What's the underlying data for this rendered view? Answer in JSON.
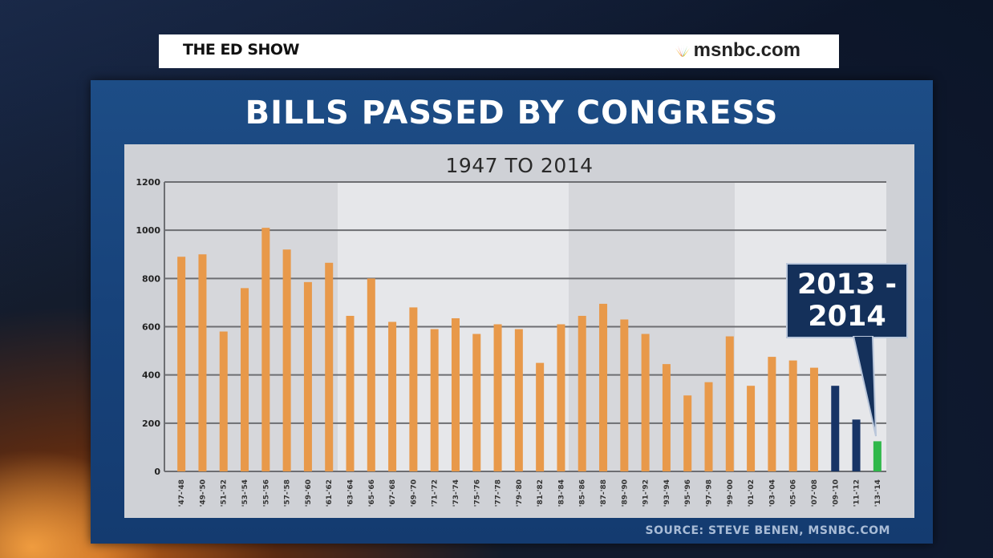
{
  "banner": {
    "show_title": "THE ED SHOW",
    "network": "msnbc.com",
    "network_logo": "peacock-icon"
  },
  "colors": {
    "bar_default": "#e8994a",
    "bar_recent": "#173466",
    "bar_highlight": "#2fb84a"
  },
  "chart_data": {
    "type": "bar",
    "title": "BILLS PASSED BY CONGRESS",
    "subtitle": "1947 TO 2014",
    "xlabel": "",
    "ylabel": "",
    "ylim": [
      0,
      1200
    ],
    "yticks": [
      0,
      200,
      400,
      600,
      800,
      1000,
      1200
    ],
    "grid": true,
    "categories": [
      "'47-'48",
      "'49-'50",
      "'51-'52",
      "'53-'54",
      "'55-'56",
      "'57-'58",
      "'59-'60",
      "'61-'62",
      "'63-'64",
      "'65-'66",
      "'67-'68",
      "'69-'70",
      "'71-'72",
      "'73-'74",
      "'75-'76",
      "'77-'78",
      "'79-'80",
      "'81-'82",
      "'83-'84",
      "'85-'86",
      "'87-'88",
      "'89-'90",
      "'91-'92",
      "'93-'94",
      "'95-'96",
      "'97-'98",
      "'99-'00",
      "'01-'02",
      "'03-'04",
      "'05-'06",
      "'07-'08",
      "'09-'10",
      "'11-'12",
      "'13-'14"
    ],
    "values": [
      890,
      900,
      580,
      760,
      1010,
      920,
      785,
      865,
      645,
      800,
      620,
      680,
      590,
      635,
      570,
      610,
      590,
      450,
      610,
      645,
      695,
      630,
      570,
      445,
      315,
      370,
      560,
      355,
      475,
      460,
      430,
      355,
      215,
      125
    ],
    "bar_colors": [
      "default",
      "default",
      "default",
      "default",
      "default",
      "default",
      "default",
      "default",
      "default",
      "default",
      "default",
      "default",
      "default",
      "default",
      "default",
      "default",
      "default",
      "default",
      "default",
      "default",
      "default",
      "default",
      "default",
      "default",
      "default",
      "default",
      "default",
      "default",
      "default",
      "default",
      "default",
      "recent",
      "recent",
      "highlight"
    ],
    "annotation": "2013 -\n2014",
    "source": "SOURCE: STEVE BENEN, MSNBC.COM"
  }
}
